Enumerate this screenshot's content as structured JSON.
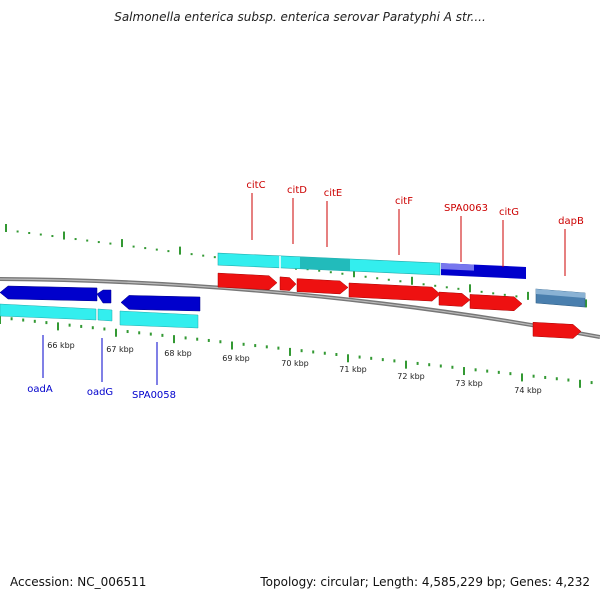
{
  "title": "Salmonella enterica subsp. enterica serovar Paratyphi A str....",
  "footer": {
    "accession": "Accession: NC_006511",
    "topology": "Topology: circular; Length: 4,585,229 bp; Genes: 4,232"
  },
  "colors": {
    "forward_label": "#cc0000",
    "reverse_label": "#0000cc",
    "tick_major": "#339933",
    "backbone": "#777777",
    "cds_forward": "#ee1111",
    "cds_reverse": "#0000cc",
    "feature_cyan": "#33eeee",
    "feature_steel": "#4a7fae"
  },
  "scale_labels": [
    "66 kbp",
    "67 kbp",
    "68 kbp",
    "69 kbp",
    "70 kbp",
    "71 kbp",
    "72 kbp",
    "73 kbp",
    "74 kbp"
  ],
  "forward_genes": [
    "citC",
    "citD",
    "citE",
    "citF",
    "SPA0063",
    "citG",
    "dapB"
  ],
  "reverse_genes": [
    "oadA",
    "oadG",
    "SPA0058"
  ]
}
